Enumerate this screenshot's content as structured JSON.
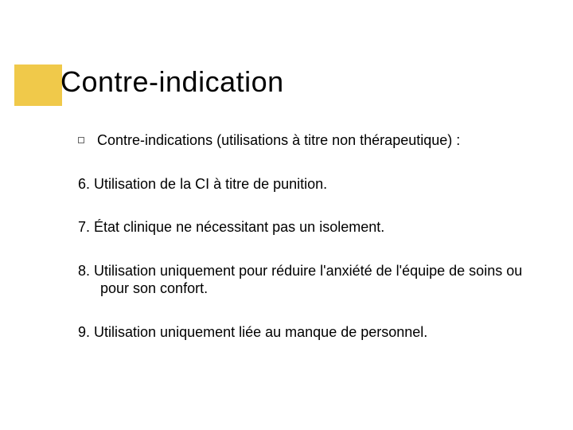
{
  "accent_color": "#f0c94a",
  "background_color": "#ffffff",
  "text_color": "#000000",
  "title": "Contre-indication",
  "title_fontsize": 36,
  "intro": {
    "text": "Contre-indications (utilisations à titre non thérapeutique) :",
    "fontsize": 18
  },
  "items": [
    {
      "text": "6. Utilisation de la CI à titre de punition."
    },
    {
      "text": "7. État clinique ne nécessitant pas un isolement."
    },
    {
      "text": "8. Utilisation uniquement pour réduire l'anxiété de l'équipe de soins ou pour son confort."
    },
    {
      "text": "9. Utilisation uniquement liée au manque de personnel."
    }
  ],
  "item_fontsize": 18
}
